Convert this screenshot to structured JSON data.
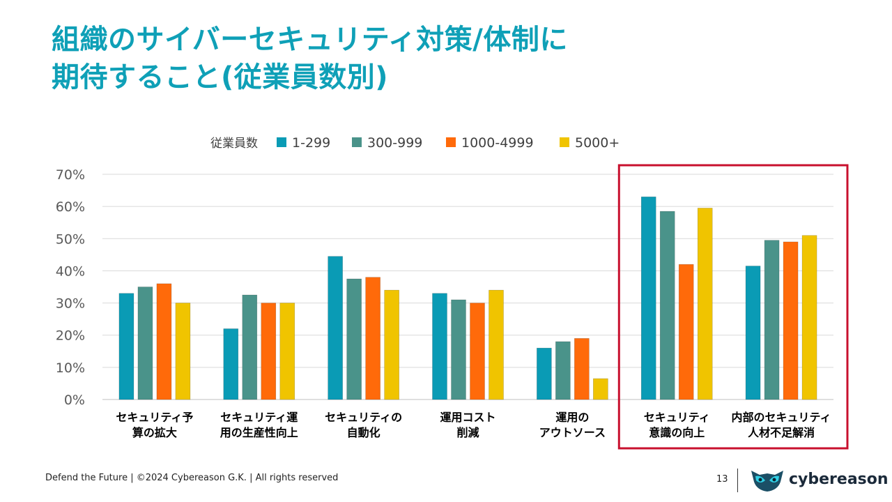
{
  "slide": {
    "title_lines": [
      "組織のサイバーセキュリティ対策/体制に",
      "期待すること(従業員数別)"
    ],
    "footer": "Defend the Future | ©2024 Cybereason G.K. | All rights reserved",
    "page_number": "13",
    "logo_text": "cybereason"
  },
  "chart_data": {
    "type": "bar",
    "title": "",
    "legend_title": "従業員数",
    "legend_position": "top",
    "categories": [
      [
        "セキュリティ予",
        "算の拡大"
      ],
      [
        "セキュリティ運",
        "用の生産性向上"
      ],
      [
        "セキュリティの",
        "自動化"
      ],
      [
        "運用コスト",
        "削減"
      ],
      [
        "運用の",
        "アウトソース"
      ],
      [
        "セキュリティ",
        "意識の向上"
      ],
      [
        "内部のセキュリティ",
        "人材不足解消"
      ]
    ],
    "series": [
      {
        "name": "1-299",
        "color": "#0a9bb5",
        "values": [
          33,
          22,
          44.5,
          33,
          16,
          63,
          41.5
        ]
      },
      {
        "name": "300-999",
        "color": "#4a938a",
        "values": [
          35,
          32.5,
          37.5,
          31,
          18,
          58.5,
          49.5
        ]
      },
      {
        "name": "1000-4999",
        "color": "#ff6a0a",
        "values": [
          36,
          30,
          38,
          30,
          19,
          42,
          49
        ]
      },
      {
        "name": "5000+",
        "color": "#f0c400",
        "values": [
          30,
          30,
          34,
          34,
          6.5,
          59.5,
          51
        ]
      }
    ],
    "ylim": [
      0,
      70
    ],
    "yticks": [
      0,
      10,
      20,
      30,
      40,
      50,
      60,
      70
    ],
    "ytick_labels": [
      "0%",
      "10%",
      "20%",
      "30%",
      "40%",
      "50%",
      "60%",
      "70%"
    ],
    "grid": true,
    "highlight": {
      "categories": [
        5,
        6
      ],
      "color": "#c8102e"
    }
  }
}
